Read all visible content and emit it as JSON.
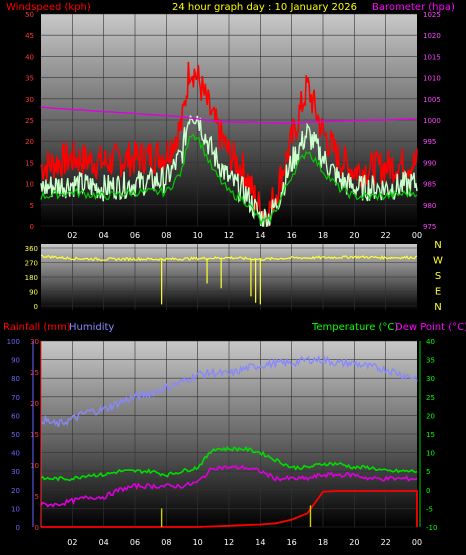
{
  "header": {
    "left_title": "Windspeed (kph)",
    "center_title": "24 hour graph day : 10 January 2026",
    "right_title": "Barometer (hpa)"
  },
  "colors": {
    "wind_gust": "#ff0000",
    "wind_avg": "#ccffcc",
    "wind_mid": "#00cc00",
    "barometer": "#e000e0",
    "direction": "#ffff33",
    "humidity": "#8888ff",
    "temperature": "#00dd00",
    "dew_point": "#dd00dd",
    "rainfall": "#ff0000",
    "bottom_gold": "#cccc00",
    "header_yellow": "#ffff00",
    "header_red": "#ff0000",
    "header_magenta": "#ff00ff",
    "hum_label": "#8888ff",
    "temp_label": "#00ff00",
    "dew_label": "#ff00ff"
  },
  "x_ticks": [
    "02",
    "04",
    "06",
    "08",
    "10",
    "12",
    "14",
    "16",
    "18",
    "20",
    "22",
    "00"
  ],
  "chart_data": [
    {
      "type": "line",
      "name": "wind",
      "ylim_left": [
        0,
        50
      ],
      "yticks_left": [
        "50",
        "45",
        "40",
        "35",
        "30",
        "25",
        "20",
        "15",
        "10",
        "5",
        "0"
      ],
      "ylim_right": [
        975,
        1025
      ],
      "yticks_right": [
        "1025",
        "1020",
        "1015",
        "1010",
        "1005",
        "1000",
        "995",
        "990",
        "985",
        "980",
        "975"
      ],
      "x_hours": [
        0,
        2,
        4,
        6,
        8,
        9,
        9.5,
        10,
        10.5,
        11,
        12,
        13,
        13.5,
        14,
        14.5,
        15,
        15.5,
        16,
        17,
        18,
        19,
        20,
        22,
        24
      ],
      "series": [
        {
          "name": "Windspeed gust",
          "values": [
            14,
            16,
            15,
            16,
            17,
            24,
            38,
            35,
            30,
            25,
            17,
            13,
            8,
            4,
            3,
            8,
            14,
            20,
            33,
            22,
            16,
            13,
            14,
            15
          ]
        },
        {
          "name": "Windspeed avg",
          "values": [
            9,
            10,
            9,
            10,
            11,
            17,
            27,
            26,
            21,
            17,
            11,
            8,
            5,
            2,
            2,
            5,
            10,
            15,
            22,
            16,
            11,
            9,
            9,
            10
          ]
        },
        {
          "name": "Windspeed mid",
          "values": [
            7,
            8,
            7,
            8,
            8,
            13,
            22,
            21,
            17,
            13,
            8,
            6,
            4,
            1,
            1,
            4,
            8,
            12,
            18,
            13,
            9,
            7,
            7,
            8
          ]
        },
        {
          "name": "Barometer",
          "values": [
            1003,
            1002.5,
            1002,
            1001.5,
            1001,
            1000.8,
            1000.5,
            1000.3,
            1000,
            999.8,
            999.5,
            999.5,
            999.5,
            999.4,
            999.3,
            999.3,
            999.2,
            999.3,
            999.5,
            999.6,
            999.8,
            999.9,
            1000,
            1000.3
          ]
        }
      ]
    },
    {
      "type": "line",
      "name": "wind direction",
      "yticks": [
        "360",
        "270",
        "180",
        "90",
        "0"
      ],
      "ylim": [
        0,
        360
      ],
      "compass_labels": [
        "N",
        "W",
        "S",
        "E",
        "N"
      ],
      "x_hours": [
        0,
        2,
        4,
        6,
        8,
        10,
        12,
        14,
        16,
        18,
        20,
        22,
        24
      ],
      "values": [
        310,
        295,
        290,
        292,
        290,
        295,
        300,
        290,
        298,
        300,
        305,
        300,
        302
      ],
      "dips": [
        {
          "hour": 7.7,
          "value": 10
        },
        {
          "hour": 10.6,
          "value": 140
        },
        {
          "hour": 11.5,
          "value": 110
        },
        {
          "hour": 13.4,
          "value": 60
        },
        {
          "hour": 13.7,
          "value": 20
        },
        {
          "hour": 14.0,
          "value": 10
        }
      ]
    },
    {
      "type": "line",
      "name": "rain humidity temperature",
      "left_titles": [
        "Rainfall (mm)",
        "Humidity"
      ],
      "right_titles": [
        "Temperature (°C)",
        "Dew Point (°C)"
      ],
      "yticks_humidity": [
        "100",
        "90",
        "80",
        "70",
        "60",
        "50",
        "40",
        "30",
        "20",
        "10",
        "0"
      ],
      "ylim_humidity": [
        0,
        100
      ],
      "yticks_rain": [
        "30",
        "25",
        "20",
        "15",
        "10",
        "5",
        "0"
      ],
      "ylim_rain": [
        0,
        30
      ],
      "yticks_temp": [
        "40",
        "35",
        "30",
        "25",
        "20",
        "15",
        "10",
        "5",
        "0",
        "-5",
        "-10"
      ],
      "ylim_temp": [
        -10,
        40
      ],
      "x_hours": [
        0,
        1,
        2,
        3,
        4,
        5,
        6,
        7,
        8,
        9,
        10,
        11,
        12,
        13,
        14,
        15,
        16,
        17,
        18,
        19,
        20,
        21,
        22,
        23,
        24
      ],
      "series": [
        {
          "name": "Humidity",
          "values": [
            58,
            55,
            58,
            62,
            63,
            67,
            70,
            72,
            75,
            78,
            82,
            83,
            82,
            85,
            87,
            88,
            88,
            90,
            90,
            88,
            88,
            86,
            85,
            82,
            80
          ]
        },
        {
          "name": "Temperature",
          "values": [
            3,
            3,
            3,
            4,
            4,
            5,
            5,
            5,
            4,
            5,
            6,
            11,
            11,
            11,
            10,
            8,
            6,
            6,
            7,
            7,
            6,
            6,
            5,
            5,
            5
          ]
        },
        {
          "name": "Dew Point",
          "values": [
            -4,
            -4,
            -3,
            -2,
            -2,
            0,
            1,
            1,
            1,
            1,
            2,
            6,
            6,
            6,
            5,
            3,
            3,
            3,
            4,
            4,
            4,
            3,
            3,
            3,
            3
          ]
        },
        {
          "name": "Rainfall",
          "values": [
            0,
            0,
            0,
            0,
            0,
            0,
            0,
            0,
            0,
            0,
            0,
            0.1,
            0.2,
            0.3,
            0.4,
            0.6,
            1.2,
            2.2,
            5.7,
            5.8,
            5.8,
            5.8,
            5.8,
            5.8,
            5.8
          ]
        }
      ],
      "rain_rate_bars": [
        {
          "hour": 7.7,
          "value": 3
        },
        {
          "hour": 17.2,
          "value": 3.5
        }
      ]
    }
  ]
}
